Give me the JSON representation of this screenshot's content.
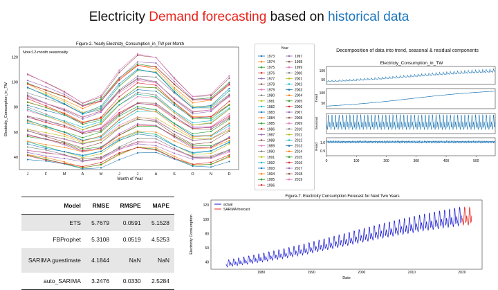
{
  "slide": {
    "title_part1": "Electricity ",
    "title_part2": "Demand forecasting",
    "title_part3": " based on ",
    "title_part4": "historical data"
  },
  "colors": {
    "title_red": "#e8241c",
    "title_blue": "#1b75bc",
    "plot_blue": "#1f77b4",
    "actual_blue": "#1010d0",
    "forecast_red": "#e8241c"
  },
  "fig2": {
    "title": "Figure-2. Yearly Electricty_Consumption_in_TW per Month",
    "note": "Note:12-month seasonality",
    "xlabel": "Month of Year",
    "ylabel": "Electricity_Consumption_in_TW",
    "months": [
      "J",
      "F",
      "M",
      "A",
      "M",
      "J",
      "J",
      "A",
      "S",
      "O",
      "N",
      "D"
    ],
    "yticks": [
      "40",
      "60",
      "80",
      "100",
      "120"
    ]
  },
  "legend": {
    "title": "Year",
    "col1": [
      "1973",
      "1974",
      "1975",
      "1976",
      "1977",
      "1978",
      "1979",
      "1980",
      "1981",
      "1982",
      "1983",
      "1984",
      "1985",
      "1986",
      "1987",
      "1988",
      "1989",
      "1990",
      "1991",
      "1992",
      "1993",
      "1994",
      "1995",
      "1996"
    ],
    "col2": [
      "1997",
      "1998",
      "1999",
      "2000",
      "2001",
      "2002",
      "2003",
      "2004",
      "2005",
      "2006",
      "2007",
      "2008",
      "2009",
      "2010",
      "2011",
      "2012",
      "2013",
      "2014",
      "2015",
      "2016",
      "2017",
      "2018",
      "2019"
    ]
  },
  "decomp": {
    "heading": "Decomposition of data into trend, seasonal & residual components",
    "subtitle": "Electricty_Consumption_in_TW",
    "ylabel_trend": "Trend",
    "ylabel_seasonal": "Seasonal",
    "ylabel_resid": "Resid",
    "ticks_top": [
      "100",
      "50"
    ],
    "ticks_trend": [
      "100",
      "50"
    ],
    "ticks_resid": [
      "1.0",
      "0.9"
    ],
    "xticks": [
      "0",
      "100",
      "200",
      "300",
      "400",
      "500"
    ]
  },
  "metrics_table": {
    "headers": [
      "Model",
      "RMSE",
      "RMSPE",
      "MAPE"
    ],
    "rows": [
      [
        "ETS",
        "5.7679",
        "0.0591",
        "5.1528"
      ],
      [
        "FBProphet",
        "5.3108",
        "0.0519",
        "4.5253"
      ],
      [
        "SARIMA guestimate",
        "4.1844",
        "NaN",
        "NaN"
      ],
      [
        "auto_SARIMA",
        "3.2476",
        "0.0330",
        "2.5284"
      ]
    ]
  },
  "fig7": {
    "title": "Figure-7. Electricity Consumption Forecast for Next Two Years",
    "legend_actual": "actual",
    "legend_forecast": "SARIMA forecast",
    "xlabel": "Date",
    "ylabel": "Electricity Consumption",
    "yticks": [
      "120",
      "100",
      "80",
      "60",
      "40"
    ],
    "xticks": [
      "1980",
      "1990",
      "2000",
      "2010",
      "2020"
    ]
  }
}
